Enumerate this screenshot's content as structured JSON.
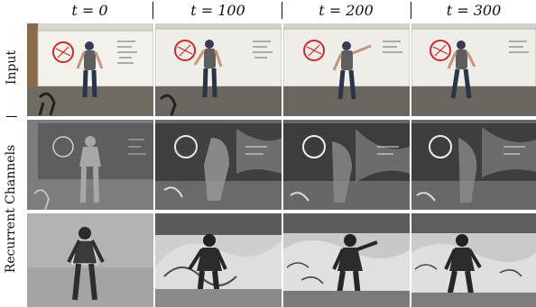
{
  "columns": [
    {
      "label": "t = 0"
    },
    {
      "label": "t = 100"
    },
    {
      "label": "t = 200"
    },
    {
      "label": "t = 300"
    }
  ],
  "rows": [
    {
      "label": "Input"
    },
    {
      "label": "Recurrent Channels"
    }
  ]
}
